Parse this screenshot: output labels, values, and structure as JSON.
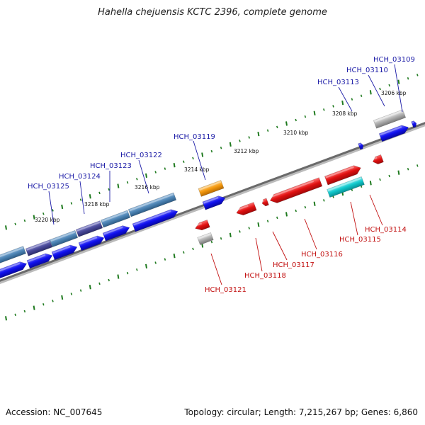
{
  "title": "Hahella chejuensis KCTC 2396, complete genome",
  "footer": {
    "accession": "Accession: NC_007645",
    "stats": "Topology: circular; Length: 7,215,267 bp; Genes: 6,860"
  },
  "colors": {
    "backbone": "#777777",
    "tick": "#1f7a1f",
    "forward_cds": "#1010ee",
    "reverse_cds": "#e01010",
    "steelblue": "#4f86b6",
    "slateblue": "#4a4a9a",
    "orange": "#f59a10",
    "cyan": "#10c8cc",
    "gray": "#b0b0b0",
    "label_blue": "#1a1aa6",
    "label_red": "#c21010"
  },
  "kbp_labels": [
    "3206 kbp",
    "3208 kbp",
    "3210 kbp",
    "3212 kbp",
    "3214 kbp",
    "3216 kbp",
    "3218 kbp",
    "3220 kbp"
  ],
  "top_labels": [
    "HCH_03109",
    "HCH_03110",
    "HCH_03113",
    "HCH_03119",
    "HCH_03122",
    "HCH_03123",
    "HCH_03124",
    "HCH_03125"
  ],
  "bottom_labels": [
    "HCH_03114",
    "HCH_03115",
    "HCH_03116",
    "HCH_03117",
    "HCH_03118",
    "HCH_03121"
  ]
}
